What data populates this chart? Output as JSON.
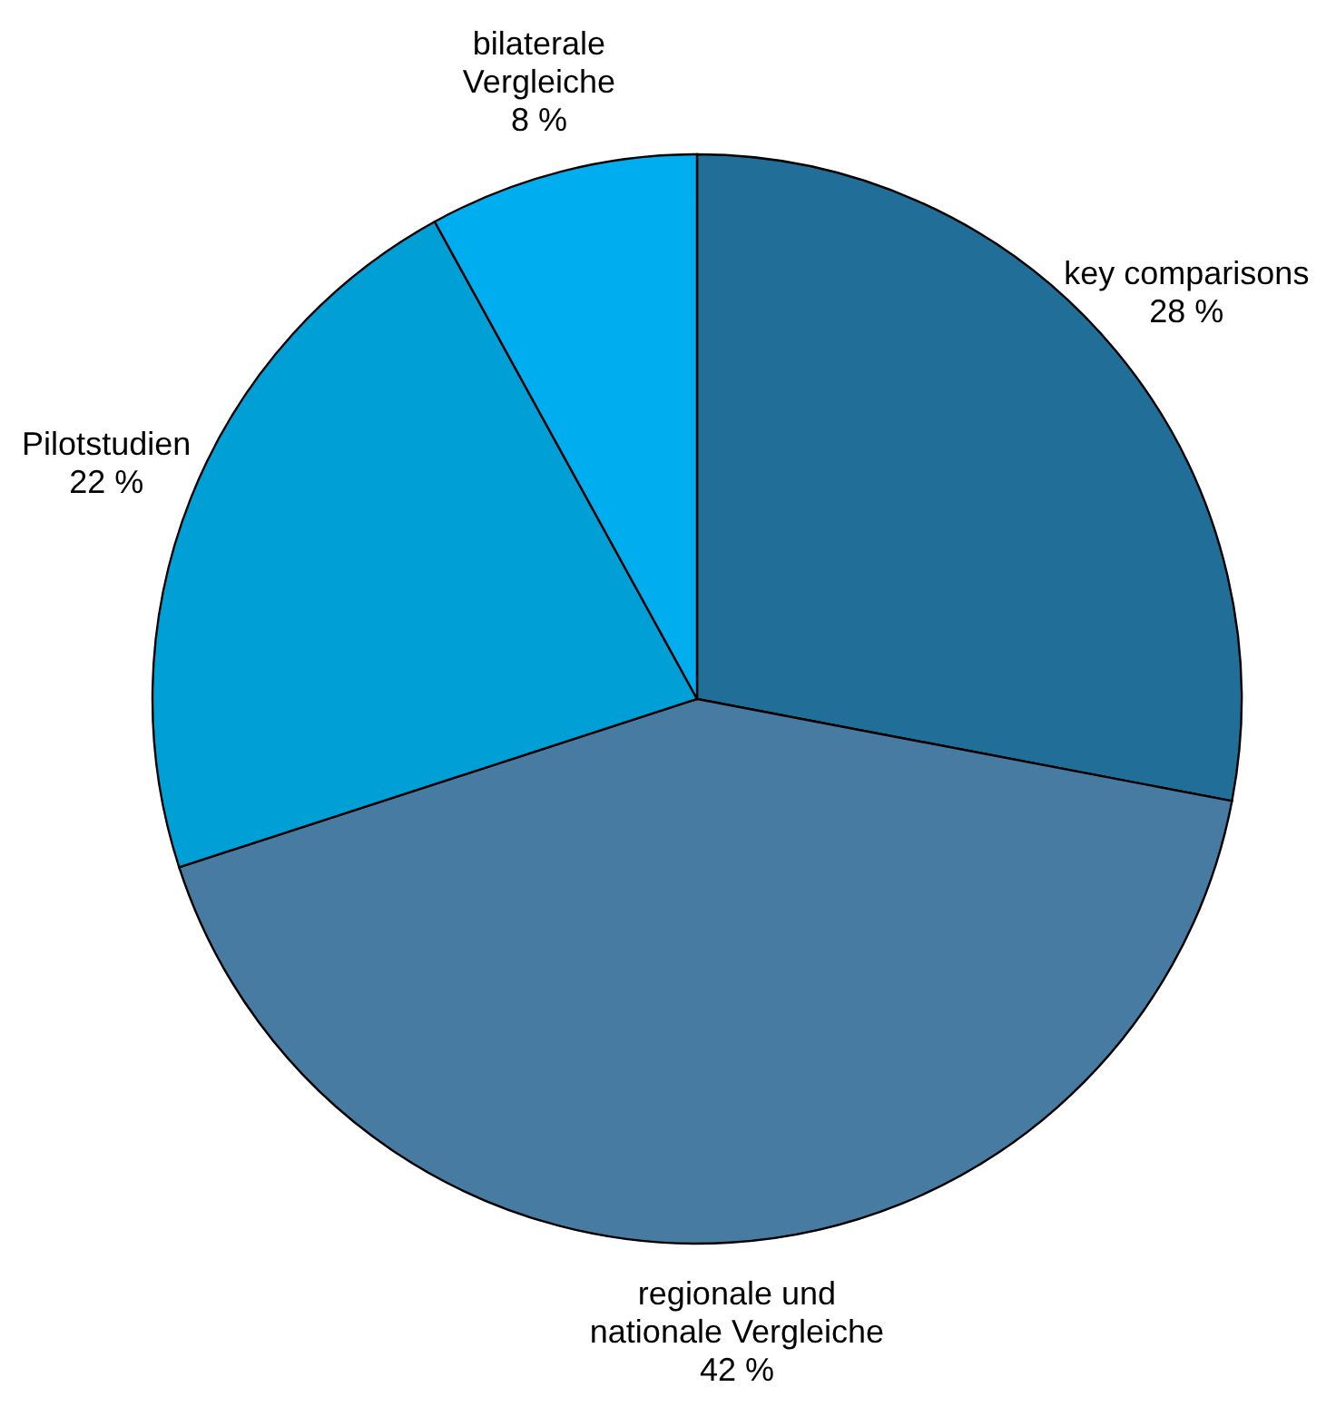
{
  "chart_data": {
    "type": "pie",
    "categories": [
      "key comparisons",
      "regionale und nationale Vergleiche",
      "Pilotstudien",
      "bilaterale Vergleiche"
    ],
    "values": [
      28,
      42,
      22,
      8
    ],
    "value_labels": [
      "28 %",
      "42 %",
      "22 %",
      "8 %"
    ],
    "colors": [
      "#216f98",
      "#477ba2",
      "#00a0d6",
      "#00aeef"
    ]
  }
}
